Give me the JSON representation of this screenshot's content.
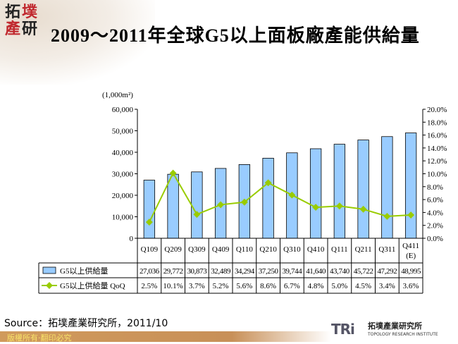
{
  "header": {
    "logo_text": "拓墣產研",
    "title": "2009～2011年全球G5以上面板廠產能供給量"
  },
  "chart_data": {
    "type": "bar",
    "title": "2009～2011年全球G5以上面板廠產能供給量",
    "ylabel": "(1,000m²)",
    "categories": [
      "Q109",
      "Q209",
      "Q309",
      "Q409",
      "Q110",
      "Q210",
      "Q310",
      "Q410",
      "Q111",
      "Q211",
      "Q311",
      "Q411 (E)"
    ],
    "ylim": [
      0,
      60000
    ],
    "y2lim": [
      0,
      20
    ],
    "yticks": [
      "0",
      "10,000",
      "20,000",
      "30,000",
      "40,000",
      "50,000",
      "60,000"
    ],
    "y2ticks": [
      "0.0%",
      "2.0%",
      "4.0%",
      "6.0%",
      "8.0%",
      "10.0%",
      "12.0%",
      "14.0%",
      "16.0%",
      "18.0%",
      "20.0%"
    ],
    "series": [
      {
        "name": "G5以上供給量",
        "type": "bar",
        "color": "#99ccff",
        "values": [
          27036,
          29772,
          30873,
          32489,
          34294,
          37250,
          39744,
          41640,
          43740,
          45722,
          47292,
          48995
        ],
        "labels": [
          "27,036",
          "29,772",
          "30,873",
          "32,489",
          "34,294",
          "37,250",
          "39,744",
          "41,640",
          "43,740",
          "45,722",
          "47,292",
          "48,995"
        ]
      },
      {
        "name": "G5以上供給量 QoQ",
        "type": "line",
        "axis": "right",
        "color": "#99cc00",
        "values": [
          2.5,
          10.1,
          3.7,
          5.2,
          5.6,
          8.6,
          6.7,
          4.8,
          5.0,
          4.5,
          3.4,
          3.6
        ],
        "labels": [
          "2.5%",
          "10.1%",
          "3.7%",
          "5.2%",
          "5.6%",
          "8.6%",
          "6.7%",
          "4.8%",
          "5.0%",
          "4.5%",
          "3.4%",
          "3.6%"
        ]
      }
    ],
    "grid": false,
    "legend": "data-table"
  },
  "footer": {
    "source": "Source：拓墣產業研究所，2011/10",
    "copyright": "版權所有‧翻印必究",
    "brand": "TRi",
    "brand_cn": "拓墣產業研究所",
    "brand_en": "TOPOLOGY RESEARCH INSTITUTE"
  }
}
